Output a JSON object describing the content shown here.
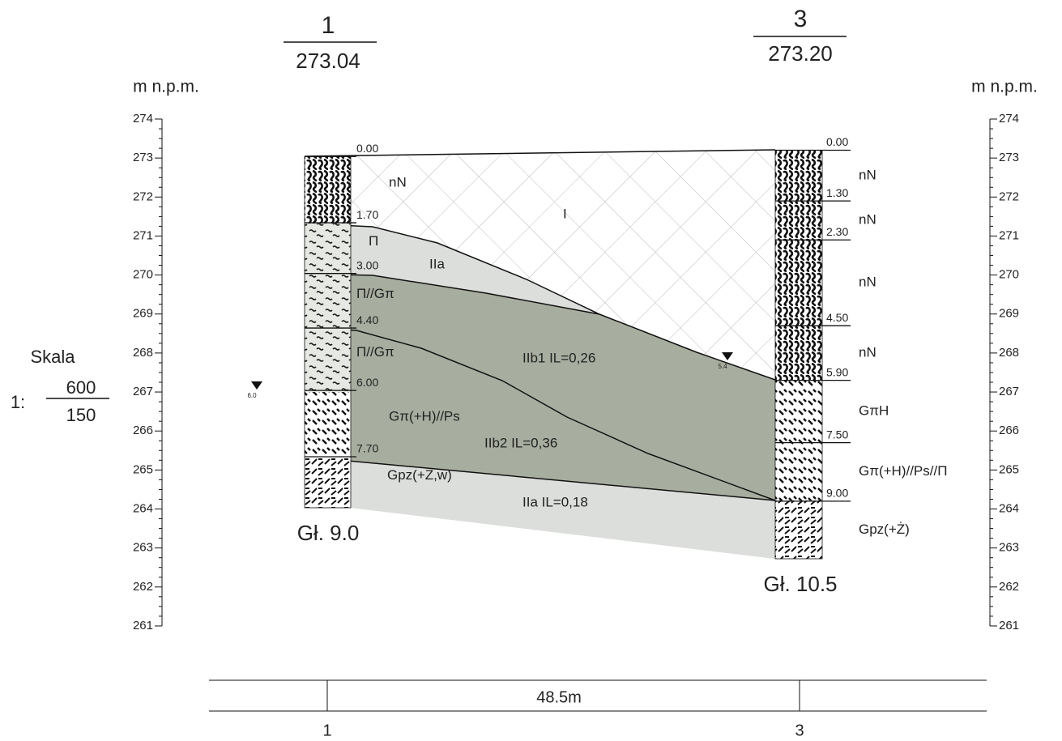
{
  "axis": {
    "unit": "m n.p.m.",
    "ticks": [
      274,
      273,
      272,
      271,
      270,
      269,
      268,
      267,
      266,
      265,
      264,
      263,
      262,
      261
    ]
  },
  "scale": {
    "label": "Skala",
    "prefix": "1:",
    "horizontal": "600",
    "vertical": "150"
  },
  "boreholes": [
    {
      "number": "1",
      "elevation": "273.04",
      "depth_label": "Gł. 9.0",
      "water": "6.0",
      "depths": [
        "0.00",
        "1.70",
        "3.00",
        "4.40",
        "6.00",
        "7.70"
      ],
      "soils": [
        "nN",
        "Π",
        "Π//Gπ",
        "Π//Gπ",
        "Gπ(+H)//Ps",
        "Gpz(+Ż,w)"
      ]
    },
    {
      "number": "3",
      "elevation": "273.20",
      "depth_label": "Gł. 10.5",
      "water": "5.4",
      "depths": [
        "0.00",
        "1.30",
        "2.30",
        "4.50",
        "5.90",
        "7.50",
        "9.00"
      ],
      "soils": [
        "nN",
        "nN",
        "nN",
        "nN",
        "GπH",
        "Gπ(+H)//Ps//Π",
        "Gpz(+Ż)"
      ]
    }
  ],
  "layers": [
    "I",
    "IIa",
    "IIb1  IL=0,26",
    "IIb2  IL=0,36",
    "IIa  IL=0,18"
  ],
  "distance": "48.5m"
}
